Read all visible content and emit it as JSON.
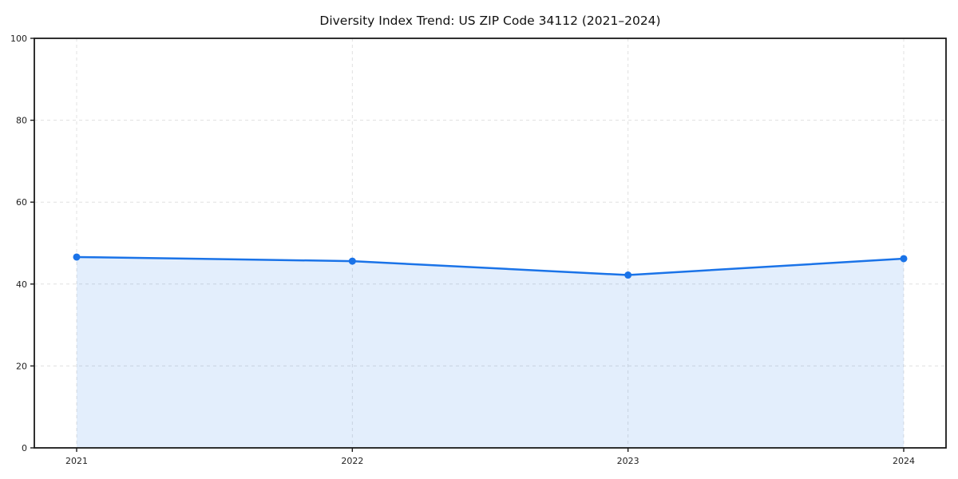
{
  "chart_data": {
    "type": "area",
    "title": "Diversity Index Trend: US ZIP Code 34112 (2021–2024)",
    "x": [
      "2021",
      "2022",
      "2023",
      "2024"
    ],
    "series": [
      {
        "name": "Diversity Index",
        "values": [
          46.6,
          45.6,
          42.2,
          46.2
        ]
      }
    ],
    "xlabel": "",
    "ylabel": "",
    "ylim": [
      0,
      100
    ],
    "yticks": [
      0,
      20,
      40,
      60,
      80,
      100
    ],
    "grid": true,
    "grid_style": "dashed",
    "legend": false,
    "colors": {
      "line": "#1a73e8",
      "fill": "#1a73e8",
      "fill_opacity": "0.12",
      "grid": "#e0e0e0",
      "spine": "#1a1a1a",
      "tick_text": "#222222",
      "background": "#ffffff"
    }
  }
}
